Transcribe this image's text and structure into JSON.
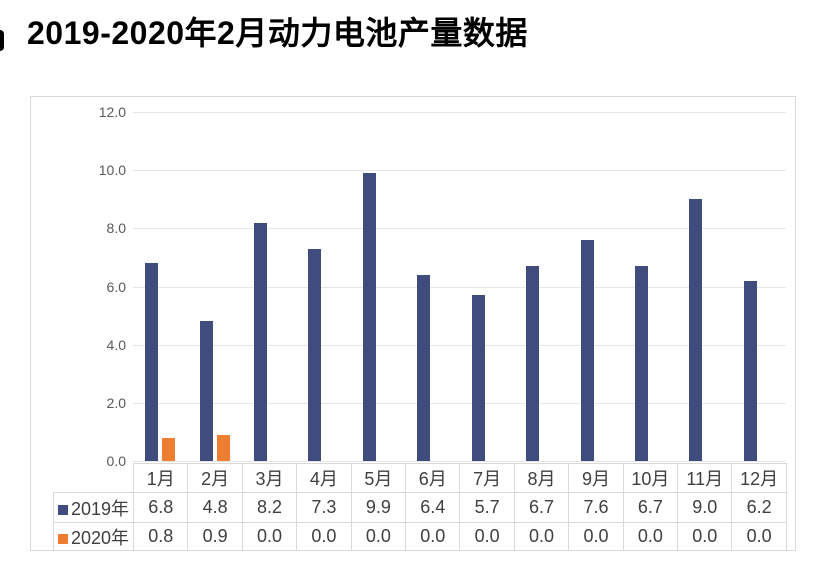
{
  "title": "2019-2020年2月动力电池产量数据",
  "chart_data": {
    "type": "bar",
    "title": "2019-2020年2月动力电池产量数据",
    "categories": [
      "1月",
      "2月",
      "3月",
      "4月",
      "5月",
      "6月",
      "7月",
      "8月",
      "9月",
      "10月",
      "11月",
      "12月"
    ],
    "series": [
      {
        "name": "2019年",
        "color": "#3F4C7D",
        "values": [
          6.8,
          4.8,
          8.2,
          7.3,
          9.9,
          6.4,
          5.7,
          6.7,
          7.6,
          6.7,
          9.0,
          6.2
        ]
      },
      {
        "name": "2020年",
        "color": "#ED7D31",
        "values": [
          0.8,
          0.9,
          0.0,
          0.0,
          0.0,
          0.0,
          0.0,
          0.0,
          0.0,
          0.0,
          0.0,
          0.0
        ]
      }
    ],
    "xlabel": "",
    "ylabel": "",
    "ylim": [
      0,
      12
    ],
    "ytick_step": 2,
    "ytick_labels": [
      "0.0",
      "2.0",
      "4.0",
      "6.0",
      "8.0",
      "10.0",
      "12.0"
    ],
    "grid": true,
    "legend_position": "bottom-data-table",
    "value_decimals": 1
  },
  "colors": {
    "series_2019": "#3F4C7D",
    "series_2020": "#ED7D31",
    "gridline": "#E6E6E6",
    "table_border": "#D9D9D9",
    "axis_tick_text": "#595959",
    "table_text": "#3F3F3F",
    "title_text": "#000000",
    "background": "#FFFFFF"
  }
}
